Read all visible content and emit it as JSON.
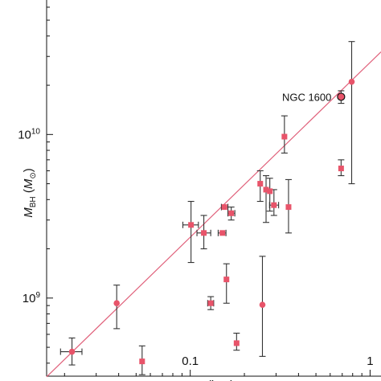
{
  "chart_data": {
    "type": "scatter",
    "title": "",
    "xlabel": "r (kpc)",
    "ylabel": "M_BH (M_sun)",
    "xscale": "log",
    "yscale": "log",
    "xlim": [
      0.0159,
      1.15
    ],
    "ylim": [
      333000000.0,
      66400000000.0
    ],
    "x_tick_labels": [
      {
        "value": 0.1,
        "label": "0.1"
      },
      {
        "value": 1,
        "label": "1"
      }
    ],
    "y_tick_labels": [
      {
        "value": 1000000000.0,
        "base": "10",
        "exp": "9"
      },
      {
        "value": 10000000000.0,
        "base": "10",
        "exp": "10"
      }
    ],
    "ylabel_parts": {
      "main": "M",
      "sub": "BH",
      "paren_open": " (",
      "paren_main": "M",
      "paren_sub": "⊙",
      "paren_close": ")"
    },
    "xlabel_parts": {
      "main": "r",
      "text": " (kpc)"
    },
    "marker_color": "#e8546a",
    "line_color": "#e0607a",
    "errorbar_color": "#333333",
    "fit_line": {
      "x": [
        0.0159,
        1.15
      ],
      "y": [
        330000000.0,
        32000000000.0
      ]
    },
    "annotation": {
      "text": "NGC 1600",
      "x": 0.69,
      "y": 17000000000.0
    },
    "points": [
      {
        "x": 0.022,
        "y": 470000000.0,
        "xerr": [
          0.019,
          0.025
        ],
        "yerr": [
          390000000.0,
          570000000.0
        ],
        "marker": "circle"
      },
      {
        "x": 0.039,
        "y": 930000000.0,
        "yerr": [
          650000000.0,
          1200000000.0
        ],
        "marker": "circle"
      },
      {
        "x": 0.054,
        "y": 410000000.0,
        "yerr": [
          340000000.0,
          510000000.0
        ],
        "marker": "square"
      },
      {
        "x": 0.101,
        "y": 2800000000.0,
        "xerr": [
          0.091,
          0.111
        ],
        "yerr": [
          1650000000.0,
          3900000000.0
        ],
        "marker": "square"
      },
      {
        "x": 0.119,
        "y": 2500000000.0,
        "xerr": [
          0.109,
          0.13
        ],
        "yerr": [
          2000000000.0,
          3200000000.0
        ],
        "marker": "square"
      },
      {
        "x": 0.13,
        "y": 930000000.0,
        "xerr": [
          0.125,
          0.135
        ],
        "yerr": [
          850000000.0,
          1020000000.0
        ],
        "marker": "square"
      },
      {
        "x": 0.151,
        "y": 2500000000.0,
        "xerr": [
          0.143,
          0.158
        ],
        "marker": "square"
      },
      {
        "x": 0.155,
        "y": 3600000000.0,
        "xerr": [
          0.149,
          0.162
        ],
        "marker": "square"
      },
      {
        "x": 0.159,
        "y": 1300000000.0,
        "yerr": [
          930000000.0,
          1620000000.0
        ],
        "marker": "square"
      },
      {
        "x": 0.169,
        "y": 3300000000.0,
        "xerr": [
          0.162,
          0.177
        ],
        "yerr": [
          3000000000.0,
          3600000000.0
        ],
        "marker": "square"
      },
      {
        "x": 0.181,
        "y": 530000000.0,
        "yerr": [
          480000000.0,
          610000000.0
        ],
        "marker": "square"
      },
      {
        "x": 0.245,
        "y": 5000000000.0,
        "yerr": [
          3900000000.0,
          6000000000.0
        ],
        "marker": "square"
      },
      {
        "x": 0.252,
        "y": 910000000.0,
        "yerr": [
          440000000.0,
          1800000000.0
        ],
        "marker": "circle"
      },
      {
        "x": 0.264,
        "y": 4600000000.0,
        "yerr": [
          2900000000.0,
          5600000000.0
        ],
        "marker": "square"
      },
      {
        "x": 0.277,
        "y": 4500000000.0,
        "yerr": [
          3400000000.0,
          5400000000.0
        ],
        "marker": "square"
      },
      {
        "x": 0.292,
        "y": 3700000000.0,
        "xerr": [
          0.276,
          0.31
        ],
        "yerr": [
          3200000000.0,
          4600000000.0
        ],
        "marker": "square"
      },
      {
        "x": 0.334,
        "y": 9700000000.0,
        "yerr": [
          7700000000.0,
          13000000000.0
        ],
        "marker": "square"
      },
      {
        "x": 0.352,
        "y": 3600000000.0,
        "yerr": [
          2500000000.0,
          5300000000.0
        ],
        "marker": "square"
      },
      {
        "x": 0.69,
        "y": 17000000000.0,
        "yerr": [
          15500000000.0,
          18500000000.0
        ],
        "marker": "ringed"
      },
      {
        "x": 0.69,
        "y": 6200000000.0,
        "yerr": [
          5600000000.0,
          7000000000.0
        ],
        "marker": "square"
      },
      {
        "x": 0.79,
        "y": 21000000000.0,
        "yerr": [
          5000000000.0,
          37000000000.0
        ],
        "marker": "circle"
      }
    ]
  }
}
